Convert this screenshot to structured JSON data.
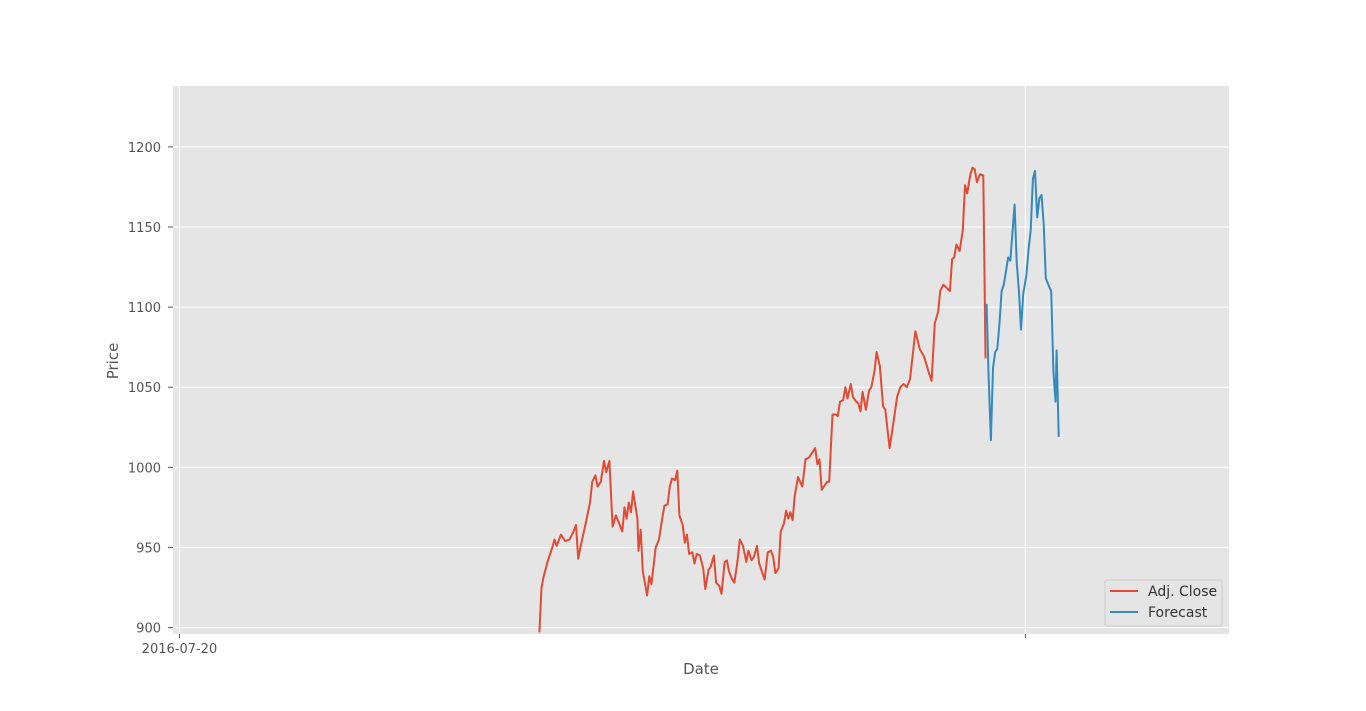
{
  "chart_data": {
    "type": "line",
    "title": "",
    "xlabel": "Date",
    "ylabel": "Price",
    "x_axis": {
      "type": "date",
      "range": [
        "2016-07-14",
        "2019-03-21"
      ],
      "ticks": [
        {
          "date": "2016-07-20",
          "label": "2016-07-20"
        },
        {
          "date": "2018-09-13",
          "label": ""
        }
      ]
    },
    "ylim": [
      896,
      1238
    ],
    "yticks": [
      900,
      950,
      1000,
      1050,
      1100,
      1150,
      1200
    ],
    "grid": true,
    "legend": {
      "position": "lower right",
      "entries": [
        "Adj. Close",
        "Forecast"
      ]
    },
    "series": [
      {
        "name": "Adj. Close",
        "color": "#E24A33",
        "points": [
          [
            "2017-06-19",
            897
          ],
          [
            "2017-06-21",
            925
          ],
          [
            "2017-06-23",
            932
          ],
          [
            "2017-06-27",
            942
          ],
          [
            "2017-07-01",
            950
          ],
          [
            "2017-07-03",
            955
          ],
          [
            "2017-07-05",
            951
          ],
          [
            "2017-07-09",
            958
          ],
          [
            "2017-07-13",
            954
          ],
          [
            "2017-07-17",
            955
          ],
          [
            "2017-07-20",
            959
          ],
          [
            "2017-07-23",
            964
          ],
          [
            "2017-07-25",
            943
          ],
          [
            "2017-07-28",
            953
          ],
          [
            "2017-08-01",
            965
          ],
          [
            "2017-08-05",
            978
          ],
          [
            "2017-08-07",
            991
          ],
          [
            "2017-08-10",
            995
          ],
          [
            "2017-08-12",
            988
          ],
          [
            "2017-08-15",
            991
          ],
          [
            "2017-08-18",
            1004
          ],
          [
            "2017-08-20",
            997
          ],
          [
            "2017-08-23",
            1004
          ],
          [
            "2017-08-26",
            963
          ],
          [
            "2017-08-29",
            970
          ],
          [
            "2017-09-01",
            965
          ],
          [
            "2017-09-04",
            960
          ],
          [
            "2017-09-06",
            975
          ],
          [
            "2017-09-08",
            968
          ],
          [
            "2017-09-10",
            978
          ],
          [
            "2017-09-12",
            972
          ],
          [
            "2017-09-14",
            985
          ],
          [
            "2017-09-18",
            968
          ],
          [
            "2017-09-19",
            948
          ],
          [
            "2017-09-21",
            961
          ],
          [
            "2017-09-23",
            935
          ],
          [
            "2017-09-27",
            920
          ],
          [
            "2017-09-29",
            932
          ],
          [
            "2017-10-01",
            927
          ],
          [
            "2017-10-05",
            950
          ],
          [
            "2017-10-08",
            955
          ],
          [
            "2017-10-11",
            968
          ],
          [
            "2017-10-13",
            976
          ],
          [
            "2017-10-16",
            977
          ],
          [
            "2017-10-18",
            988
          ],
          [
            "2017-10-20",
            993
          ],
          [
            "2017-10-23",
            992
          ],
          [
            "2017-10-25",
            998
          ],
          [
            "2017-10-27",
            970
          ],
          [
            "2017-10-30",
            964
          ],
          [
            "2017-11-01",
            953
          ],
          [
            "2017-11-03",
            958
          ],
          [
            "2017-11-05",
            946
          ],
          [
            "2017-11-08",
            947
          ],
          [
            "2017-11-10",
            940
          ],
          [
            "2017-11-12",
            946
          ],
          [
            "2017-11-15",
            945
          ],
          [
            "2017-11-18",
            937
          ],
          [
            "2017-11-20",
            924
          ],
          [
            "2017-11-23",
            936
          ],
          [
            "2017-11-25",
            938
          ],
          [
            "2017-11-28",
            945
          ],
          [
            "2017-11-30",
            928
          ],
          [
            "2017-12-03",
            926
          ],
          [
            "2017-12-05",
            921
          ],
          [
            "2017-12-08",
            941
          ],
          [
            "2017-12-10",
            942
          ],
          [
            "2017-12-12",
            935
          ],
          [
            "2017-12-15",
            930
          ],
          [
            "2017-12-17",
            928
          ],
          [
            "2017-12-20",
            942
          ],
          [
            "2017-12-22",
            955
          ],
          [
            "2017-12-25",
            951
          ],
          [
            "2017-12-28",
            941
          ],
          [
            "2017-12-30",
            948
          ],
          [
            "2018-01-02",
            942
          ],
          [
            "2018-01-04",
            944
          ],
          [
            "2018-01-07",
            951
          ],
          [
            "2018-01-09",
            940
          ],
          [
            "2018-01-12",
            934
          ],
          [
            "2018-01-14",
            930
          ],
          [
            "2018-01-17",
            947
          ],
          [
            "2018-01-20",
            948
          ],
          [
            "2018-01-22",
            944
          ],
          [
            "2018-01-24",
            934
          ],
          [
            "2018-01-27",
            937
          ],
          [
            "2018-01-29",
            960
          ],
          [
            "2018-02-01",
            965
          ],
          [
            "2018-02-03",
            973
          ],
          [
            "2018-02-05",
            968
          ],
          [
            "2018-02-07",
            972
          ],
          [
            "2018-02-09",
            967
          ],
          [
            "2018-02-11",
            982
          ],
          [
            "2018-02-14",
            994
          ],
          [
            "2018-02-16",
            991
          ],
          [
            "2018-02-18",
            988
          ],
          [
            "2018-02-21",
            1005
          ],
          [
            "2018-02-24",
            1006
          ],
          [
            "2018-02-27",
            1009
          ],
          [
            "2018-03-02",
            1012
          ],
          [
            "2018-03-04",
            1002
          ],
          [
            "2018-03-06",
            1005
          ],
          [
            "2018-03-08",
            986
          ],
          [
            "2018-03-11",
            989
          ],
          [
            "2018-03-13",
            991
          ],
          [
            "2018-03-15",
            991
          ],
          [
            "2018-03-18",
            1033
          ],
          [
            "2018-03-21",
            1033
          ],
          [
            "2018-03-23",
            1032
          ],
          [
            "2018-03-25",
            1041
          ],
          [
            "2018-03-28",
            1042
          ],
          [
            "2018-03-30",
            1050
          ],
          [
            "2018-04-01",
            1043
          ],
          [
            "2018-04-04",
            1052
          ],
          [
            "2018-04-06",
            1044
          ],
          [
            "2018-04-09",
            1041
          ],
          [
            "2018-04-11",
            1040
          ],
          [
            "2018-04-13",
            1035
          ],
          [
            "2018-04-15",
            1047
          ],
          [
            "2018-04-18",
            1036
          ],
          [
            "2018-04-21",
            1048
          ],
          [
            "2018-04-23",
            1050
          ],
          [
            "2018-04-26",
            1060
          ],
          [
            "2018-04-28",
            1072
          ],
          [
            "2018-05-01",
            1063
          ],
          [
            "2018-05-04",
            1038
          ],
          [
            "2018-05-06",
            1036
          ],
          [
            "2018-05-10",
            1012
          ],
          [
            "2018-05-14",
            1030
          ],
          [
            "2018-05-17",
            1044
          ],
          [
            "2018-05-20",
            1050
          ],
          [
            "2018-05-23",
            1052
          ],
          [
            "2018-05-26",
            1050
          ],
          [
            "2018-05-29",
            1055
          ],
          [
            "2018-06-03",
            1085
          ],
          [
            "2018-06-07",
            1074
          ],
          [
            "2018-06-11",
            1069
          ],
          [
            "2018-06-15",
            1060
          ],
          [
            "2018-06-18",
            1054
          ],
          [
            "2018-06-21",
            1090
          ],
          [
            "2018-06-24",
            1097
          ],
          [
            "2018-06-26",
            1110
          ],
          [
            "2018-06-29",
            1114
          ],
          [
            "2018-07-02",
            1112
          ],
          [
            "2018-07-05",
            1110
          ],
          [
            "2018-07-07",
            1130
          ],
          [
            "2018-07-09",
            1131
          ],
          [
            "2018-07-11",
            1139
          ],
          [
            "2018-07-14",
            1135
          ],
          [
            "2018-07-17",
            1148
          ],
          [
            "2018-07-19",
            1176
          ],
          [
            "2018-07-21",
            1171
          ],
          [
            "2018-07-24",
            1183
          ],
          [
            "2018-07-26",
            1187
          ],
          [
            "2018-07-28",
            1186
          ],
          [
            "2018-07-30",
            1178
          ],
          [
            "2018-08-02",
            1183
          ],
          [
            "2018-08-05",
            1182
          ],
          [
            "2018-08-07",
            1068
          ]
        ]
      },
      {
        "name": "Forecast",
        "color": "#348ABD",
        "points": [
          [
            "2018-08-08",
            1102
          ],
          [
            "2018-08-10",
            1055
          ],
          [
            "2018-08-12",
            1017
          ],
          [
            "2018-08-14",
            1062
          ],
          [
            "2018-08-16",
            1072
          ],
          [
            "2018-08-18",
            1074
          ],
          [
            "2018-08-20",
            1090
          ],
          [
            "2018-08-22",
            1110
          ],
          [
            "2018-08-24",
            1114
          ],
          [
            "2018-08-26",
            1122
          ],
          [
            "2018-08-28",
            1131
          ],
          [
            "2018-08-30",
            1129
          ],
          [
            "2018-09-01",
            1146
          ],
          [
            "2018-09-03",
            1164
          ],
          [
            "2018-09-05",
            1128
          ],
          [
            "2018-09-07",
            1110
          ],
          [
            "2018-09-09",
            1086
          ],
          [
            "2018-09-11",
            1108
          ],
          [
            "2018-09-14",
            1120
          ],
          [
            "2018-09-16",
            1136
          ],
          [
            "2018-09-18",
            1148
          ],
          [
            "2018-09-20",
            1180
          ],
          [
            "2018-09-22",
            1185
          ],
          [
            "2018-09-24",
            1156
          ],
          [
            "2018-09-26",
            1168
          ],
          [
            "2018-09-28",
            1170
          ],
          [
            "2018-09-30",
            1152
          ],
          [
            "2018-10-02",
            1118
          ],
          [
            "2018-10-05",
            1113
          ],
          [
            "2018-10-07",
            1110
          ],
          [
            "2018-10-09",
            1060
          ],
          [
            "2018-10-11",
            1041
          ],
          [
            "2018-10-12",
            1073
          ],
          [
            "2018-10-14",
            1019
          ]
        ]
      }
    ]
  }
}
